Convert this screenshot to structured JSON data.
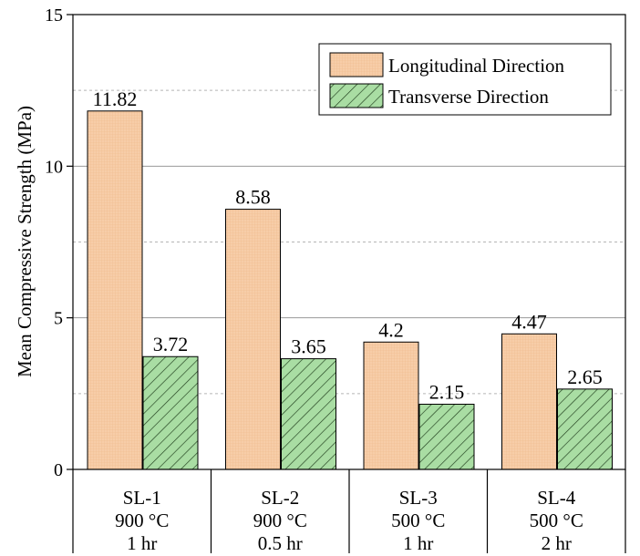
{
  "chart_data": {
    "type": "bar",
    "categories": [
      [
        "SL-1",
        "900 °C",
        "1 hr"
      ],
      [
        "SL-2",
        "900 °C",
        "0.5 hr"
      ],
      [
        "SL-3",
        "500 °C",
        "1 hr"
      ],
      [
        "SL-4",
        "500 °C",
        "2 hr"
      ]
    ],
    "series": [
      {
        "name": "Longitudinal Direction",
        "values": [
          11.82,
          8.58,
          4.2,
          4.47
        ],
        "data_labels": [
          "11.82",
          "8.58",
          "4.2",
          "4.47"
        ],
        "color": "#f6c9a1",
        "pattern": "grid"
      },
      {
        "name": "Transverse Direction",
        "values": [
          3.72,
          3.65,
          2.15,
          2.65
        ],
        "data_labels": [
          "3.72",
          "3.65",
          "2.15",
          "2.65"
        ],
        "color": "#a6dca0",
        "pattern": "diagonal-hatch"
      }
    ],
    "ylabel": "Mean Compressive Strength (MPa)",
    "xlabel": "",
    "ylim": [
      0,
      15
    ],
    "yticks": [
      "0",
      "5",
      "10",
      "15"
    ],
    "grid": {
      "major": [
        5,
        10
      ],
      "minor_dashed": [
        2.5,
        7.5,
        12.5
      ]
    },
    "legend_position": "top-right"
  }
}
